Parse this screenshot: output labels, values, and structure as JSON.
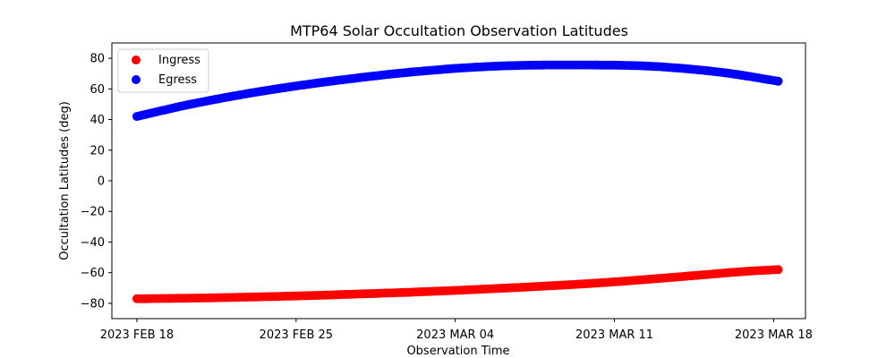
{
  "chart_data": {
    "type": "scatter",
    "title": "MTP64 Solar Occultation Observation Latitudes",
    "xlabel": "Observation Time",
    "ylabel": "Occultation Latitudes (deg)",
    "x_unit": "days since 2023 FEB 18",
    "xlim": [
      -1.1,
      29.4
    ],
    "ylim": [
      -90,
      90
    ],
    "x_ticks": [
      {
        "value": 0,
        "label": "2023 FEB 18"
      },
      {
        "value": 7,
        "label": "2023 FEB 25"
      },
      {
        "value": 14,
        "label": "2023 MAR 04"
      },
      {
        "value": 21,
        "label": "2023 MAR 11"
      },
      {
        "value": 28,
        "label": "2023 MAR 18"
      }
    ],
    "y_ticks": [
      {
        "value": 80,
        "label": "80"
      },
      {
        "value": 60,
        "label": "60"
      },
      {
        "value": 40,
        "label": "40"
      },
      {
        "value": 20,
        "label": "20"
      },
      {
        "value": 0,
        "label": "0"
      },
      {
        "value": -20,
        "label": "−20"
      },
      {
        "value": -40,
        "label": "−40"
      },
      {
        "value": -60,
        "label": "−60"
      },
      {
        "value": -80,
        "label": "−80"
      }
    ],
    "legend_position": "top-left",
    "series": [
      {
        "name": "Ingress",
        "color": "#ff0000",
        "x": [
          0,
          1,
          2,
          3,
          4,
          5,
          6,
          7,
          8,
          9,
          10,
          11,
          12,
          13,
          14,
          15,
          16,
          17,
          18,
          19,
          20,
          21,
          22,
          23,
          24,
          25,
          26,
          27,
          28.2
        ],
        "y": [
          -77,
          -76.9,
          -76.7,
          -76.5,
          -76.2,
          -75.9,
          -75.6,
          -75.2,
          -74.8,
          -74.3,
          -73.8,
          -73.3,
          -72.8,
          -72.2,
          -71.6,
          -70.9,
          -70.2,
          -69.5,
          -68.7,
          -67.9,
          -67.0,
          -66.0,
          -64.9,
          -63.7,
          -62.5,
          -61.3,
          -60.0,
          -58.9,
          -58.0
        ]
      },
      {
        "name": "Egress",
        "color": "#0000ff",
        "x": [
          0,
          1,
          2,
          3,
          4,
          5,
          6,
          7,
          8,
          9,
          10,
          11,
          12,
          13,
          14,
          15,
          16,
          17,
          18,
          19,
          20,
          21,
          22,
          23,
          24,
          25,
          26,
          27,
          28.2
        ],
        "y": [
          42,
          45.5,
          48.9,
          51.9,
          54.7,
          57.3,
          59.7,
          61.9,
          64.0,
          65.9,
          67.7,
          69.4,
          70.9,
          72.2,
          73.4,
          74.3,
          75.0,
          75.4,
          75.6,
          75.6,
          75.6,
          75.5,
          75.2,
          74.5,
          73.4,
          72.0,
          70.3,
          68.0,
          65.0
        ]
      }
    ]
  }
}
